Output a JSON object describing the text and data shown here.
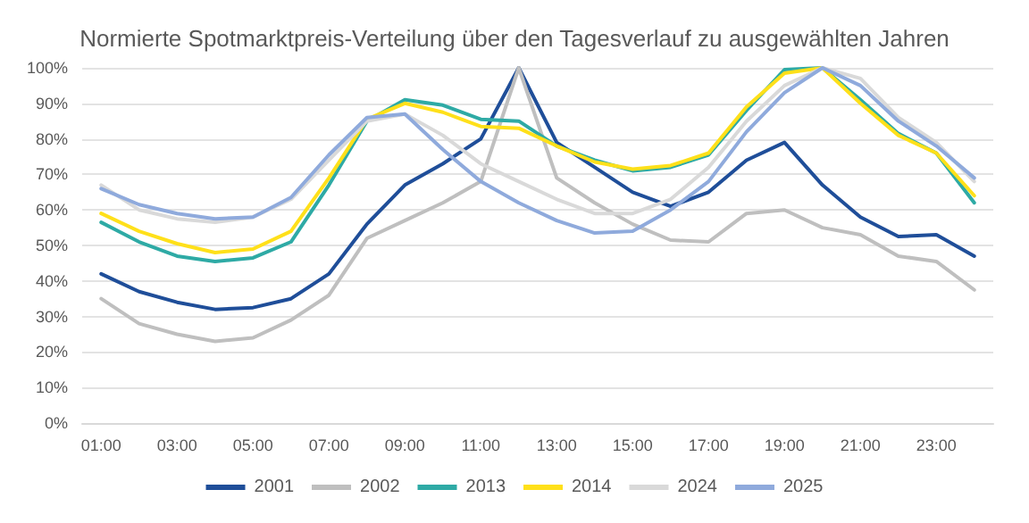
{
  "chart_data": {
    "type": "line",
    "title": "Normierte Spotmarktpreis-Verteilung über den Tagesverlauf zu ausgewählten Jahren",
    "categories": [
      "01:00",
      null,
      "03:00",
      null,
      "05:00",
      null,
      "07:00",
      null,
      "09:00",
      null,
      "11:00",
      null,
      "13:00",
      null,
      "15:00",
      null,
      "17:00",
      null,
      "19:00",
      null,
      "21:00",
      null,
      "23:00",
      null
    ],
    "series": [
      {
        "name": "2001",
        "color": "#1f4e99",
        "values": [
          42,
          37,
          34,
          32,
          32.5,
          35,
          42,
          56,
          67,
          73,
          80,
          100,
          79,
          72,
          65,
          61,
          65,
          74,
          79,
          67,
          58,
          52.5,
          53,
          47
        ]
      },
      {
        "name": "2002",
        "color": "#bfbfbf",
        "values": [
          35,
          28,
          25,
          23,
          24,
          29,
          36,
          52,
          57,
          62,
          68,
          100,
          69,
          62,
          56,
          51.5,
          51,
          59,
          60,
          55,
          53,
          47,
          45.5,
          37.5
        ]
      },
      {
        "name": "2013",
        "color": "#2eaaa5",
        "values": [
          56.5,
          51,
          47,
          45.5,
          46.5,
          51,
          67,
          85,
          91,
          89.5,
          85.5,
          85,
          78,
          74,
          71,
          72,
          75.5,
          88,
          99.5,
          100,
          91,
          81.5,
          76,
          62
        ]
      },
      {
        "name": "2014",
        "color": "#ffe01a",
        "values": [
          59,
          54,
          50.5,
          48,
          49,
          54,
          69,
          85.5,
          90,
          87.5,
          83.5,
          83,
          78,
          73.5,
          71.5,
          72.5,
          76,
          89,
          98.5,
          100,
          90,
          81,
          76,
          64
        ]
      },
      {
        "name": "2024",
        "color": "#d9d9d9",
        "values": [
          67,
          60,
          57.5,
          56.5,
          58,
          63,
          74,
          85,
          87,
          81,
          73,
          68,
          63,
          59,
          59,
          63,
          72,
          85,
          95,
          100,
          97,
          86,
          79,
          68
        ]
      },
      {
        "name": "2025",
        "color": "#8faadc",
        "values": [
          66,
          61.5,
          59,
          57.5,
          58,
          63.5,
          75.5,
          86,
          87,
          77,
          68,
          62,
          57,
          53.5,
          54,
          60,
          68,
          82,
          93,
          100,
          95,
          85,
          78,
          69
        ]
      }
    ],
    "ylim": [
      0,
      100
    ],
    "yticks": [
      {
        "value": 0,
        "label": "0%"
      },
      {
        "value": 10,
        "label": "10%"
      },
      {
        "value": 20,
        "label": "20%"
      },
      {
        "value": 30,
        "label": "30%"
      },
      {
        "value": 40,
        "label": "40%"
      },
      {
        "value": 50,
        "label": "50%"
      },
      {
        "value": 60,
        "label": "60%"
      },
      {
        "value": 70,
        "label": "70%"
      },
      {
        "value": 80,
        "label": "80%"
      },
      {
        "value": 90,
        "label": "90%"
      },
      {
        "value": 100,
        "label": "100%"
      }
    ],
    "grid": "y",
    "legend": "bottom",
    "marker": "none",
    "line_style": "solid"
  }
}
